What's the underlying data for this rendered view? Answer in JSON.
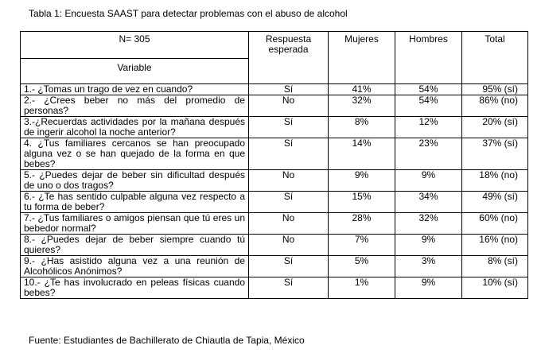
{
  "caption": "Tabla 1: Encuesta SAAST para detectar problemas con el abuso de alcohol",
  "header": {
    "n": "N= 305",
    "variable": "Variable",
    "expected": "Respuesta esperada",
    "women": "Mujeres",
    "men": "Hombres",
    "total": "Total"
  },
  "rows": [
    {
      "question": "1.- ¿Tomas un trago de vez en cuando?",
      "expected": "Sí",
      "women": "41%",
      "men": "54%",
      "total": "95% (sí)"
    },
    {
      "question": "2.- ¿Crees beber no más del promedio de personas?",
      "expected": "No",
      "women": "32%",
      "men": "54%",
      "total": "86% (no)"
    },
    {
      "question": "3.-¿Recuerdas actividades por la mañana después de ingerir alcohol la noche anterior?",
      "expected": "Sí",
      "women": "8%",
      "men": "12%",
      "total": "20% (sí)"
    },
    {
      "question": "4. ¿Tus familiares cercanos se han preocupado alguna vez o se han quejado de la forma en que bebes?",
      "expected": "Sí",
      "women": "14%",
      "men": "23%",
      "total": "37% (sí)"
    },
    {
      "question": "5.- ¿Puedes dejar de beber sin dificultad después de uno o dos tragos?",
      "expected": "No",
      "women": "9%",
      "men": "9%",
      "total": "18% (no)"
    },
    {
      "question": "6.- ¿Te has sentido culpable alguna vez respecto a tu forma de beber?",
      "expected": "Sí",
      "women": "15%",
      "men": "34%",
      "total": "49% (sí)"
    },
    {
      "question": "7.- ¿Tus familiares o amigos piensan que tú eres un bebedor normal?",
      "expected": "No",
      "women": "28%",
      "men": "32%",
      "total": "60% (no)"
    },
    {
      "question": "8.- ¿Puedes dejar de beber siempre cuando tú quieres?",
      "expected": "No",
      "women": "7%",
      "men": "9%",
      "total": "16% (no)"
    },
    {
      "question": "9.- ¿Has asistido alguna vez a una reunión de Alcohólicos Anónimos?",
      "expected": "Sí",
      "women": "5%",
      "men": "3%",
      "total": "8% (sí)"
    },
    {
      "question": "10.- ¿Te has involucrado en peleas físicas cuando bebes?",
      "expected": "Sí",
      "women": "1%",
      "men": "9%",
      "total": "10% (sí)"
    }
  ],
  "source": "Fuente: Estudiantes de Bachillerato de Chiautla de Tapia, México"
}
